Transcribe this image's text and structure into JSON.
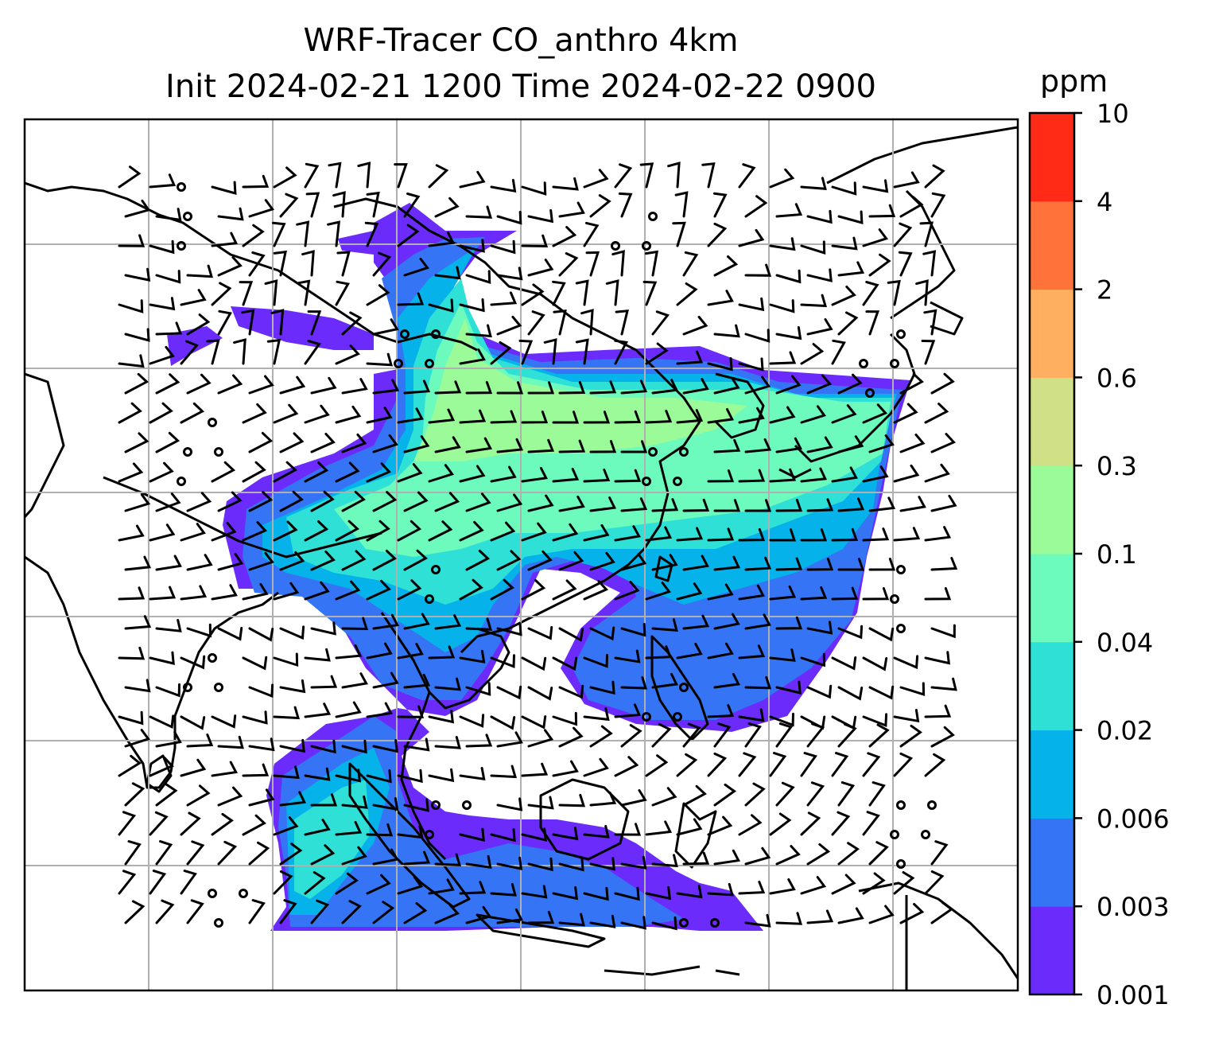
{
  "title": {
    "line1": "WRF-Tracer CO_anthro 4km",
    "line2": "Init 2024-02-21 1200 Time 2024-02-22 0900"
  },
  "colorbar": {
    "unit": "ppm",
    "levels": [
      "0.001",
      "0.003",
      "0.006",
      "0.02",
      "0.04",
      "0.1",
      "0.3",
      "0.6",
      "2",
      "4",
      "10"
    ],
    "colors": [
      "#6a2bfb",
      "#3574f4",
      "#05b3ea",
      "#2fe0d7",
      "#6cfbbd",
      "#9cfb99",
      "#cfe086",
      "#ffaf5f",
      "#ff7239",
      "#ff2b17"
    ]
  },
  "map": {
    "gridlines": true,
    "overlays": [
      "co-concentration-filled-contours",
      "coastlines",
      "country-borders",
      "wind-barbs"
    ]
  }
}
